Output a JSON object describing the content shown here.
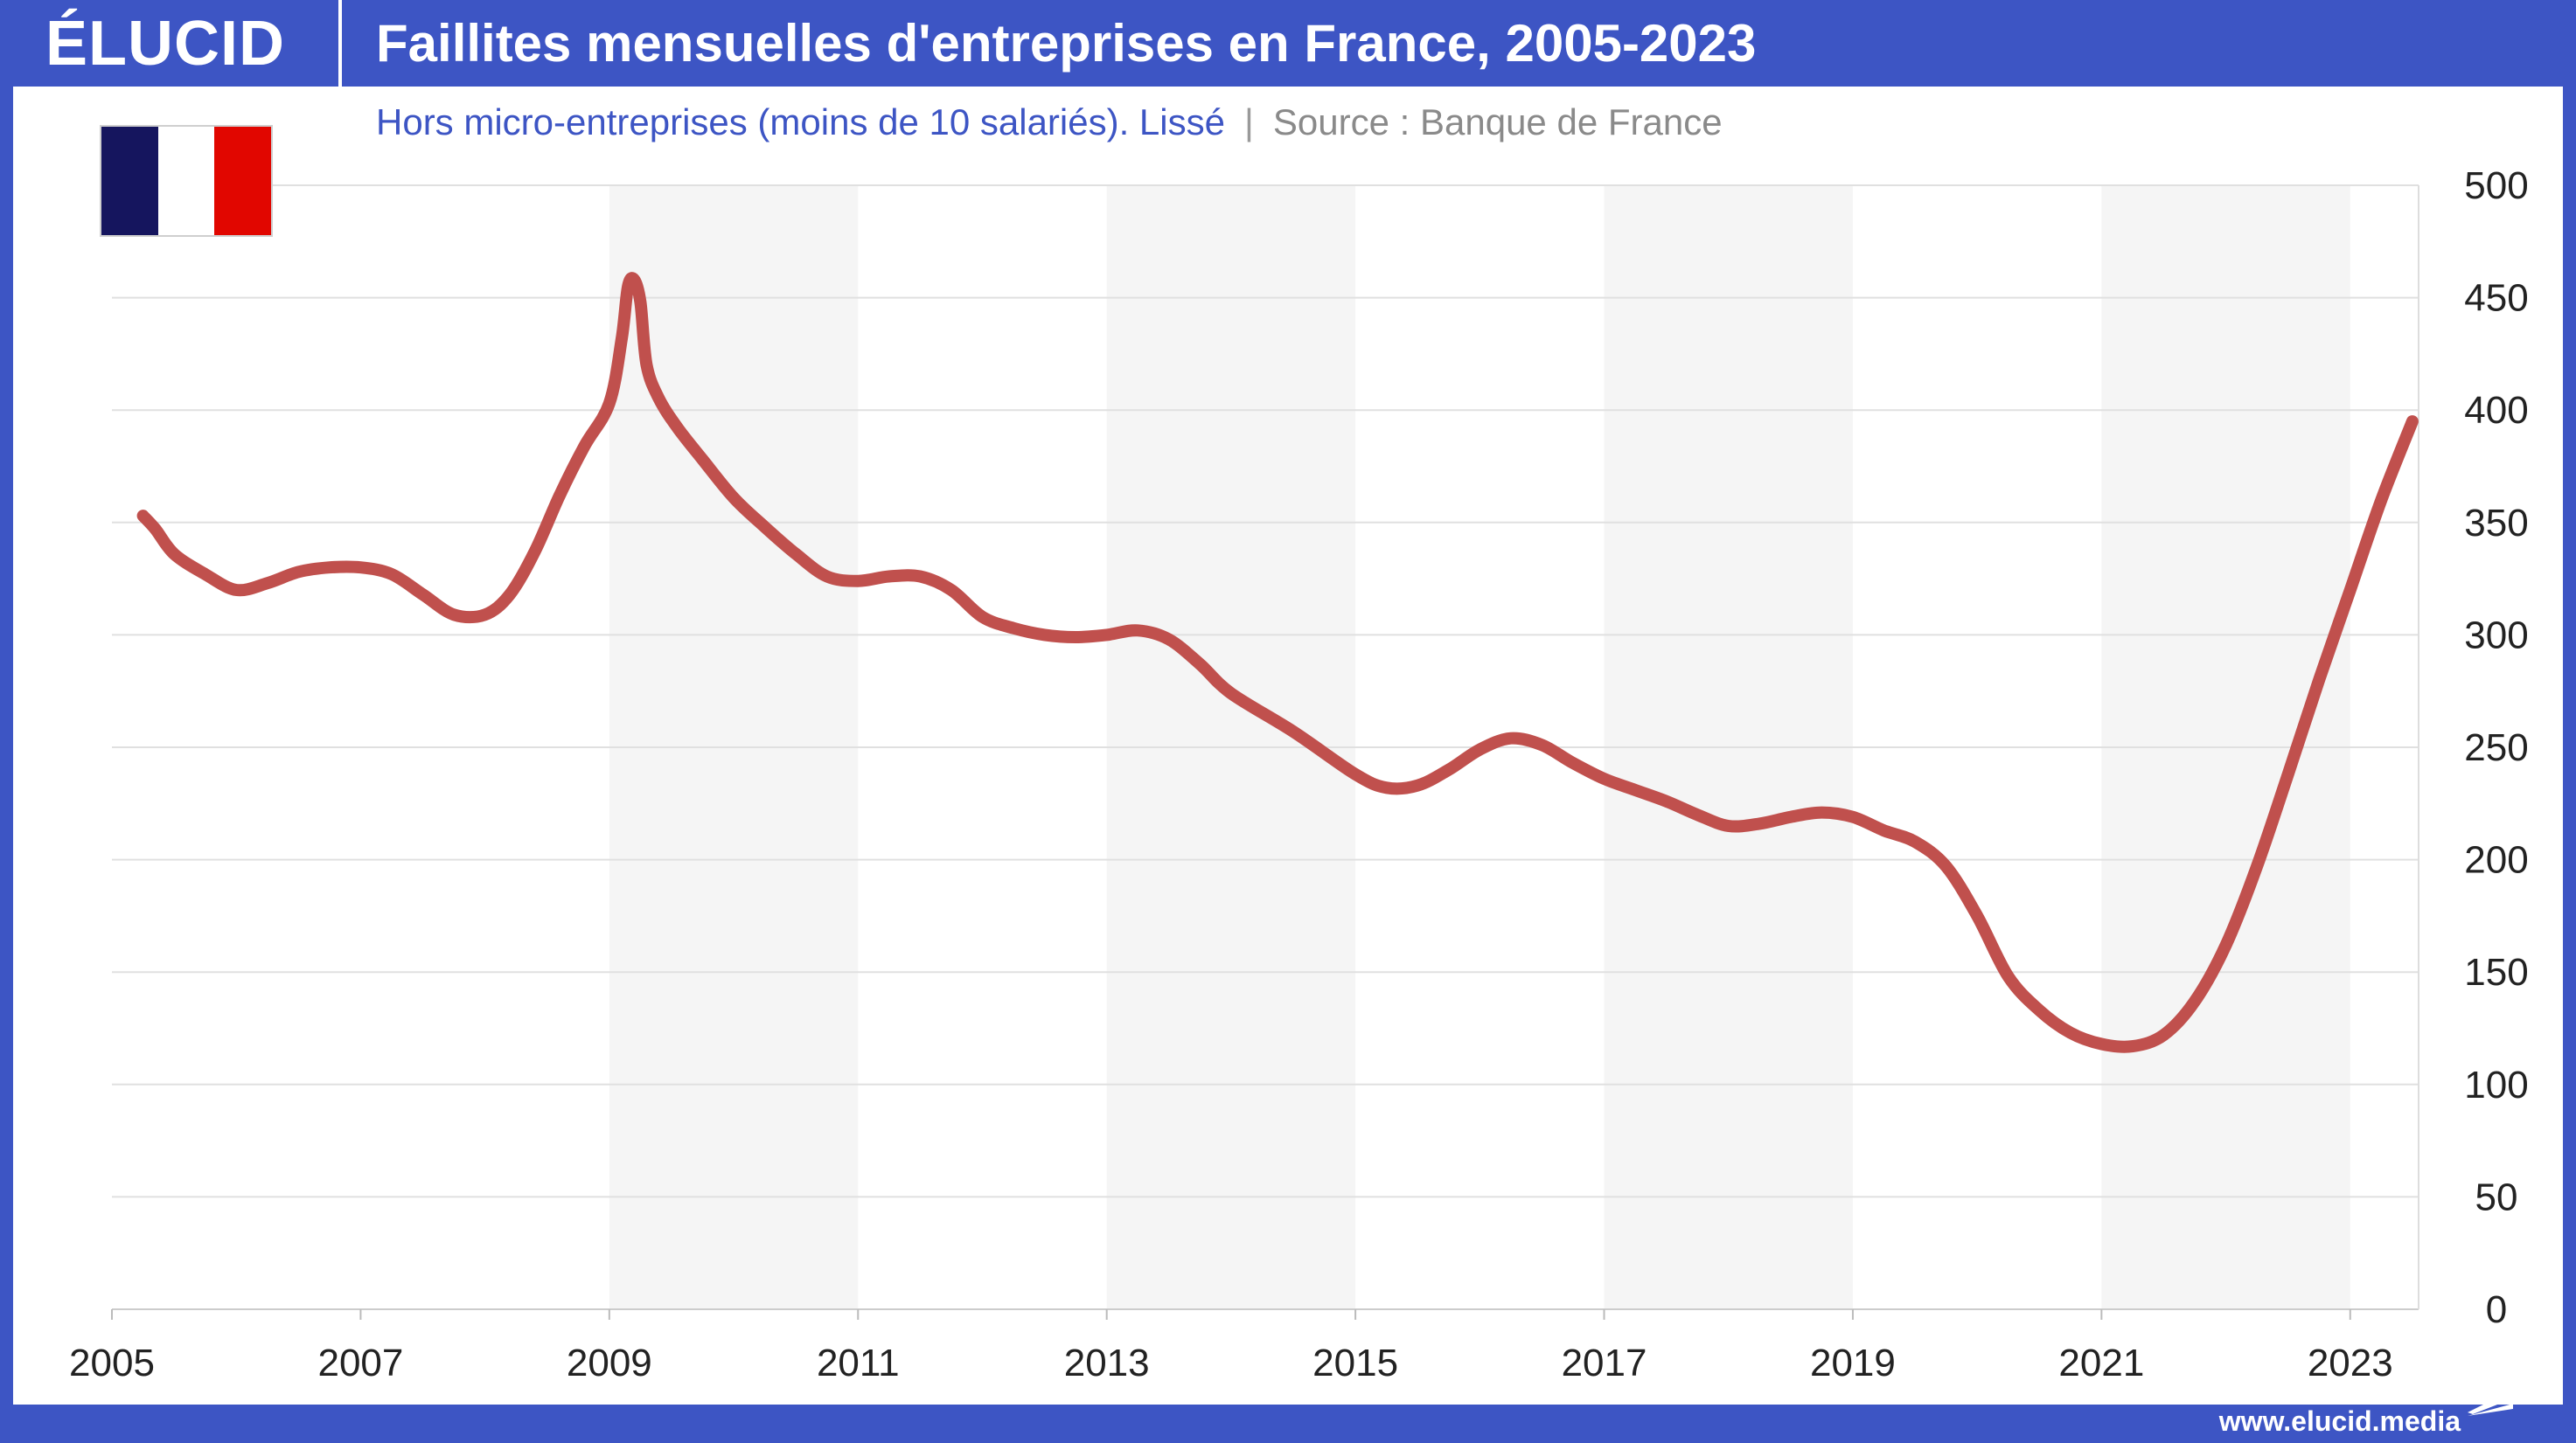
{
  "brand": {
    "logo": "ÉLUCID",
    "url": "www.elucid.media"
  },
  "header": {
    "title": "Faillites mensuelles d'entreprises en France, 2005-2023",
    "subtitle_main": "Hors micro-entreprises (moins de 10 salariés). Lissé",
    "subtitle_sep": "|",
    "subtitle_source": "Source : Banque de France"
  },
  "flag": {
    "country": "France",
    "colors": [
      "#15155e",
      "#ffffff",
      "#e10600"
    ]
  },
  "colors": {
    "accent": "#3d55c4",
    "line": "#c0504d",
    "shade": "#f5f5f5",
    "grid": "#e0e0e0"
  },
  "chart_data": {
    "type": "line",
    "title": "Faillites mensuelles d'entreprises en France, 2005-2023",
    "xlabel": "",
    "ylabel": "",
    "x_ticks": [
      "2005",
      "2007",
      "2009",
      "2011",
      "2013",
      "2015",
      "2017",
      "2019",
      "2021",
      "2023"
    ],
    "y_ticks": [
      "0",
      "50",
      "100",
      "150",
      "200",
      "250",
      "300",
      "350",
      "400",
      "450",
      "500"
    ],
    "xlim": [
      2005,
      2023.55
    ],
    "ylim": [
      0,
      500
    ],
    "y_axis_side": "right",
    "grid": true,
    "shaded_bands": [
      [
        2009,
        2011
      ],
      [
        2013,
        2015
      ],
      [
        2017,
        2019
      ],
      [
        2021,
        2023
      ]
    ],
    "series": [
      {
        "x": [
          2005.25,
          2005.35,
          2005.5,
          2005.75,
          2006.0,
          2006.25,
          2006.5,
          2006.75,
          2007.0,
          2007.25,
          2007.5,
          2007.75,
          2008.0,
          2008.2,
          2008.4,
          2008.6,
          2008.8,
          2009.0,
          2009.1,
          2009.15,
          2009.2,
          2009.25,
          2009.3,
          2009.4,
          2009.55,
          2009.75,
          2010.0,
          2010.25,
          2010.5,
          2010.75,
          2011.0,
          2011.25,
          2011.5,
          2011.75,
          2012.0,
          2012.25,
          2012.5,
          2012.75,
          2013.0,
          2013.25,
          2013.5,
          2013.75,
          2014.0,
          2014.5,
          2015.0,
          2015.25,
          2015.5,
          2015.75,
          2016.0,
          2016.25,
          2016.5,
          2016.75,
          2017.0,
          2017.25,
          2017.5,
          2017.75,
          2018.0,
          2018.25,
          2018.5,
          2018.75,
          2019.0,
          2019.25,
          2019.5,
          2019.75,
          2020.0,
          2020.25,
          2020.5,
          2020.75,
          2021.0,
          2021.25,
          2021.5,
          2021.75,
          2022.0,
          2022.25,
          2022.5,
          2022.75,
          2023.0,
          2023.25,
          2023.5
        ],
        "y": [
          353,
          347,
          336,
          327,
          320,
          323,
          328,
          330,
          330,
          327,
          318,
          309,
          309,
          318,
          337,
          362,
          384,
          403,
          432,
          455,
          458,
          448,
          420,
          405,
          392,
          378,
          361,
          348,
          336,
          326,
          324,
          326,
          326,
          320,
          308,
          303,
          300,
          299,
          300,
          302,
          298,
          287,
          274,
          257,
          238,
          232,
          233,
          240,
          249,
          254,
          251,
          243,
          236,
          231,
          226,
          220,
          215,
          216,
          219,
          221,
          219,
          213,
          208,
          197,
          175,
          148,
          133,
          123,
          118,
          117,
          122,
          137,
          162,
          197,
          238,
          280,
          320,
          360,
          395
        ]
      }
    ]
  }
}
